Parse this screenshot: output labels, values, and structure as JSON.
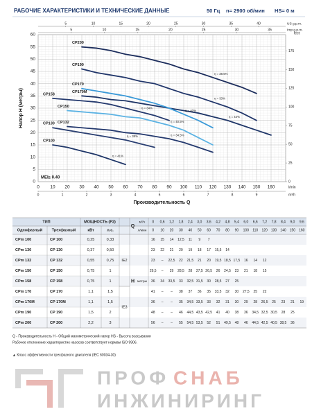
{
  "header": {
    "title": "РАБОЧИЕ ХАРАКТЕРИСТИКИ И ТЕХНИЧЕСКИЕ ДАННЫЕ",
    "frequency": "50 Гц",
    "speed": "n= 2900 об/мин",
    "suction": "HS= 0 м"
  },
  "chart_data": {
    "type": "line",
    "y_label": "Напор H (метры)",
    "x_label": "Производительность Q",
    "x_unit": "l/min",
    "x2_unit": "m³/h",
    "x3_unit": "US g.p.m.",
    "x4_unit": "Imp g.p.m.",
    "y2_label": "feet",
    "annotation": "MEI≥ 0.40",
    "xlim": [
      0,
      170
    ],
    "xticks": [
      0,
      10,
      20,
      30,
      40,
      50,
      60,
      70,
      80,
      90,
      100,
      110,
      120,
      130,
      140,
      150,
      160
    ],
    "x2lim": [
      0,
      10.2
    ],
    "x2ticks": [
      0,
      1,
      2,
      3,
      4,
      5,
      6,
      7,
      8,
      9
    ],
    "x3lim": [
      0,
      44.9
    ],
    "x3ticks": [
      5,
      10,
      15,
      20,
      25,
      30,
      35,
      40
    ],
    "x4lim": [
      0,
      37.4
    ],
    "x4ticks": [
      5,
      10,
      15,
      20,
      25,
      30,
      35
    ],
    "ylim": [
      0,
      60
    ],
    "yticks": [
      0,
      5,
      10,
      15,
      20,
      25,
      30,
      35,
      40,
      45,
      50,
      55,
      60
    ],
    "y2lim": [
      0,
      196.9
    ],
    "y2ticks": [
      0,
      25,
      50,
      75,
      100,
      125,
      150,
      175
    ],
    "grid": true,
    "series": [
      {
        "name": "CP200",
        "color": "#1c2d5c",
        "efficiency": "η = 38.5%",
        "x": [
          30,
          40,
          50,
          60,
          70,
          80,
          90,
          100,
          110,
          120,
          130,
          140,
          150
        ],
        "values": [
          55,
          54.5,
          53.5,
          52,
          51,
          49.5,
          48,
          46,
          44.5,
          42.5,
          40.5,
          38.5,
          36
        ]
      },
      {
        "name": "CP190",
        "color": "#22376b",
        "efficiency": "η = 33%",
        "x": [
          30,
          40,
          50,
          60,
          70,
          80,
          90,
          100,
          110,
          120,
          130,
          140,
          150
        ],
        "values": [
          46,
          44.5,
          43.5,
          42.5,
          41,
          40,
          38,
          36,
          34.5,
          32.5,
          30.5,
          28,
          25
        ]
      },
      {
        "name": "CP170M",
        "color": "#1f3668",
        "efficiency": "η = 44%",
        "x": [
          30,
          40,
          50,
          60,
          70,
          80,
          90,
          100,
          110,
          120,
          130,
          140,
          150,
          160
        ],
        "values": [
          35,
          34.5,
          33.5,
          33,
          32,
          31,
          30,
          29,
          28,
          26.5,
          25,
          23,
          21,
          19
        ]
      },
      {
        "name": "CP170",
        "color": "#3b9ad8",
        "efficiency": "η = 40%",
        "x": [
          30,
          40,
          50,
          60,
          70,
          80,
          90,
          100,
          110,
          120
        ],
        "values": [
          38,
          37,
          36,
          35,
          33.5,
          32,
          30,
          27.5,
          25,
          22
        ]
      },
      {
        "name": "CP158",
        "color": "#24396e",
        "efficiency": "η = 34%",
        "x": [
          10,
          20,
          30,
          40,
          50,
          60,
          70,
          80,
          90
        ],
        "values": [
          34,
          33.5,
          33,
          32.5,
          31.5,
          30,
          28.5,
          27,
          25
        ]
      },
      {
        "name": "CP150",
        "color": "#5bb2e3",
        "efficiency": "η = 40.5%",
        "x": [
          20,
          30,
          40,
          50,
          60,
          70,
          80,
          90,
          100,
          110,
          120
        ],
        "values": [
          29,
          28.5,
          28,
          27.5,
          26.5,
          26,
          24.5,
          23,
          21,
          18,
          15
        ]
      },
      {
        "name": "CP132",
        "color": "#24396e",
        "efficiency": "η = 34.5%",
        "x": [
          20,
          30,
          40,
          50,
          60,
          70,
          80,
          90,
          100,
          110,
          120
        ],
        "values": [
          22.5,
          22,
          21.5,
          21,
          20,
          19.5,
          18.5,
          17.5,
          16,
          14,
          12
        ]
      },
      {
        "name": "CP130",
        "color": "#2a3f72",
        "efficiency": "η = 38%",
        "x": [
          10,
          20,
          30,
          40,
          50,
          60,
          70,
          80
        ],
        "values": [
          22,
          21,
          20,
          19,
          18,
          17,
          15.5,
          14
        ]
      },
      {
        "name": "CP100",
        "color": "#1f3668",
        "efficiency": "η = 41%",
        "x": [
          10,
          20,
          30,
          40,
          50,
          60
        ],
        "values": [
          15,
          14,
          12.5,
          11,
          9,
          7
        ]
      }
    ]
  },
  "table": {
    "header": {
      "type": "ТИП",
      "single_phase": "Однофазный",
      "three_phase": "Трехфазный",
      "power": "МОЩНОСТЬ (P2)",
      "kw": "кВт",
      "hp": "л.с.",
      "q": "Q",
      "q_unit_m3h": "м³/ч",
      "q_unit_lmin": "л/мин",
      "h": "H",
      "h_unit": "метры"
    },
    "q_m3h": [
      "0",
      "0,6",
      "1,2",
      "1,8",
      "2,4",
      "3,0",
      "3,6",
      "4,2",
      "4,8",
      "5,4",
      "6,0",
      "6,6",
      "7,2",
      "7,8",
      "8,4",
      "9,0",
      "9,6"
    ],
    "q_lmin": [
      "0",
      "10",
      "20",
      "30",
      "40",
      "50",
      "60",
      "70",
      "80",
      "90",
      "100",
      "110",
      "120",
      "130",
      "140",
      "150",
      "160"
    ],
    "ie": [
      "IE2",
      "IE3"
    ],
    "rows": [
      {
        "single": "CPm 100",
        "three": "CP 100",
        "kw": "0,25",
        "hp": "0,33",
        "h": [
          "16",
          "15",
          "14",
          "12,5",
          "11",
          "9",
          "7"
        ]
      },
      {
        "single": "CPm 130",
        "three": "CP 130",
        "kw": "0,37",
        "hp": "0,50",
        "h": [
          "23",
          "22",
          "21",
          "20",
          "19",
          "18",
          "17",
          "15,5",
          "14"
        ]
      },
      {
        "single": "CPm 132",
        "three": "CP 132",
        "kw": "0,55",
        "hp": "0,75",
        "h": [
          "23",
          "–",
          "22,5",
          "22",
          "21,5",
          "21",
          "20",
          "19,5",
          "18,5",
          "17,5",
          "16",
          "14",
          "12"
        ]
      },
      {
        "single": "CPm 150",
        "three": "CP 150",
        "kw": "0,75",
        "hp": "1",
        "h": [
          "29,5",
          "–",
          "29",
          "28,5",
          "28",
          "27,5",
          "26,5",
          "26",
          "24,5",
          "23",
          "21",
          "18",
          "15"
        ]
      },
      {
        "single": "CPm 158",
        "three": "CP 158",
        "kw": "0,75",
        "hp": "1",
        "h": [
          "36",
          "34",
          "33,5",
          "33",
          "32,5",
          "31,5",
          "30",
          "28,5",
          "27",
          "25"
        ]
      },
      {
        "single": "CPm 170",
        "three": "CP 170",
        "kw": "1,1",
        "hp": "1,5",
        "h": [
          "41",
          "–",
          "–",
          "38",
          "37",
          "36",
          "35",
          "33,5",
          "32",
          "30",
          "27,5",
          "25",
          "22"
        ]
      },
      {
        "single": "CPm 170M",
        "three": "CP 170M",
        "kw": "1,1",
        "hp": "1,5",
        "h": [
          "36",
          "–",
          "–",
          "35",
          "34,5",
          "33,5",
          "33",
          "32",
          "31",
          "30",
          "29",
          "28",
          "26,5",
          "25",
          "23",
          "21",
          "19"
        ]
      },
      {
        "single": "CPm 190",
        "three": "CP 190",
        "kw": "1,5",
        "hp": "2",
        "h": [
          "48",
          "–",
          "–",
          "46",
          "44,5",
          "43,5",
          "42,5",
          "41",
          "40",
          "38",
          "36",
          "34,5",
          "32,5",
          "30,5",
          "28",
          "25"
        ]
      },
      {
        "single": "CPm 200",
        "three": "CP 200",
        "kw": "2,2",
        "hp": "3",
        "h": [
          "56",
          "–",
          "–",
          "55",
          "54,5",
          "53,5",
          "52",
          "51",
          "49,5",
          "48",
          "46",
          "44,5",
          "42,5",
          "40,5",
          "38,5",
          "36"
        ]
      }
    ]
  },
  "notes": [
    "Q - Производительность   H - Общий манометрический напор   HS - Высота всасывания",
    "Рабочее отклонение характеристик насосов соответствует нормам ISO 9906.",
    "▲  Класс эффективности трехфазного двигателя (IEC 60034-30)"
  ],
  "logo": [
    "ПРОФ",
    "СНАБ",
    "ИНЖИНИРИНГ"
  ]
}
